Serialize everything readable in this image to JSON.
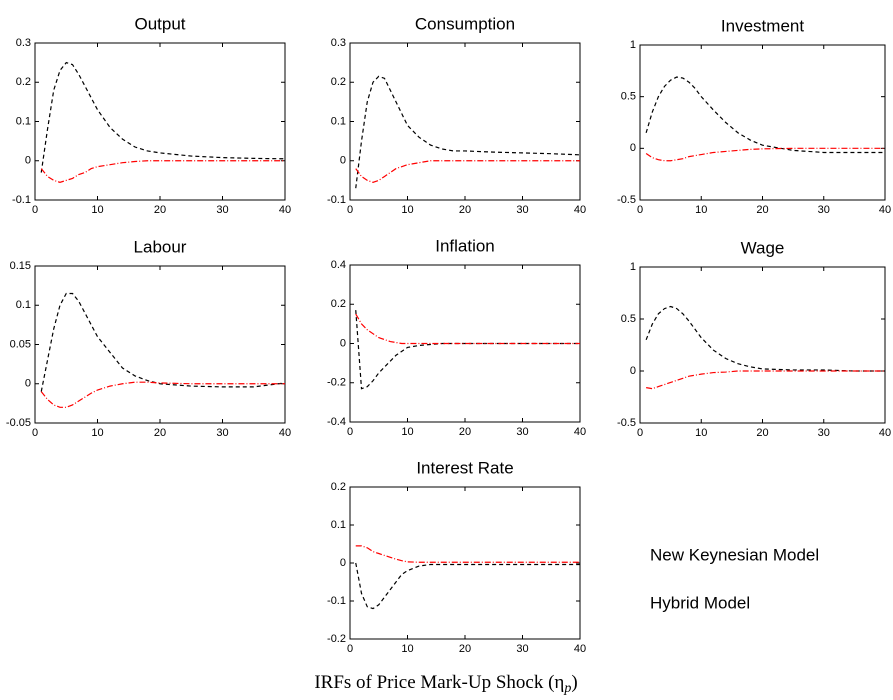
{
  "chart_data": [
    {
      "type": "line",
      "title": "Output",
      "x": [
        1,
        2,
        3,
        4,
        5,
        6,
        7,
        8,
        9,
        10,
        12,
        14,
        16,
        18,
        20,
        25,
        30,
        35,
        40
      ],
      "series": [
        {
          "color": "#000000",
          "style": "dashed",
          "values": [
            -0.03,
            0.08,
            0.18,
            0.23,
            0.25,
            0.245,
            0.22,
            0.19,
            0.16,
            0.13,
            0.085,
            0.055,
            0.035,
            0.025,
            0.02,
            0.012,
            0.008,
            0.006,
            0.005
          ]
        },
        {
          "color": "#ff0000",
          "style": "dashdot",
          "values": [
            -0.02,
            -0.04,
            -0.05,
            -0.055,
            -0.05,
            -0.045,
            -0.035,
            -0.03,
            -0.02,
            -0.015,
            -0.01,
            -0.005,
            -0.002,
            0,
            0,
            0,
            0,
            0,
            0
          ]
        }
      ],
      "xlim": [
        0,
        40
      ],
      "xticks": [
        0,
        10,
        20,
        30,
        40
      ],
      "ylim": [
        -0.1,
        0.3
      ],
      "yticks": [
        -0.1,
        0,
        0.1,
        0.2,
        0.3
      ]
    },
    {
      "type": "line",
      "title": "Consumption",
      "x": [
        1,
        2,
        3,
        4,
        5,
        6,
        7,
        8,
        9,
        10,
        12,
        14,
        16,
        18,
        20,
        25,
        30,
        35,
        40
      ],
      "series": [
        {
          "color": "#000000",
          "style": "dashed",
          "values": [
            -0.07,
            0.05,
            0.15,
            0.2,
            0.215,
            0.21,
            0.18,
            0.15,
            0.12,
            0.09,
            0.06,
            0.04,
            0.03,
            0.025,
            0.025,
            0.022,
            0.02,
            0.018,
            0.015
          ]
        },
        {
          "color": "#ff0000",
          "style": "dashdot",
          "values": [
            -0.02,
            -0.04,
            -0.05,
            -0.055,
            -0.05,
            -0.04,
            -0.03,
            -0.02,
            -0.015,
            -0.01,
            -0.005,
            0,
            0,
            0,
            0,
            0,
            0,
            0,
            0
          ]
        }
      ],
      "xlim": [
        0,
        40
      ],
      "xticks": [
        0,
        10,
        20,
        30,
        40
      ],
      "ylim": [
        -0.1,
        0.3
      ],
      "yticks": [
        -0.1,
        0,
        0.1,
        0.2,
        0.3
      ]
    },
    {
      "type": "line",
      "title": "Investment",
      "x": [
        1,
        2,
        3,
        4,
        5,
        6,
        7,
        8,
        9,
        10,
        12,
        14,
        16,
        18,
        20,
        25,
        30,
        35,
        40
      ],
      "series": [
        {
          "color": "#000000",
          "style": "dashed",
          "values": [
            0.15,
            0.35,
            0.5,
            0.6,
            0.66,
            0.69,
            0.68,
            0.64,
            0.58,
            0.5,
            0.37,
            0.25,
            0.15,
            0.08,
            0.03,
            -0.02,
            -0.04,
            -0.04,
            -0.04
          ]
        },
        {
          "color": "#ff0000",
          "style": "dashdot",
          "values": [
            -0.05,
            -0.09,
            -0.11,
            -0.12,
            -0.12,
            -0.11,
            -0.1,
            -0.08,
            -0.07,
            -0.06,
            -0.04,
            -0.03,
            -0.02,
            -0.01,
            -0.005,
            0,
            0,
            0,
            0
          ]
        }
      ],
      "xlim": [
        0,
        40
      ],
      "xticks": [
        0,
        10,
        20,
        30,
        40
      ],
      "ylim": [
        -0.5,
        1
      ],
      "yticks": [
        -0.5,
        0,
        0.5,
        1
      ]
    },
    {
      "type": "line",
      "title": "Labour",
      "x": [
        1,
        2,
        3,
        4,
        5,
        6,
        7,
        8,
        9,
        10,
        12,
        14,
        16,
        18,
        20,
        25,
        30,
        35,
        40
      ],
      "series": [
        {
          "color": "#000000",
          "style": "dashed",
          "values": [
            -0.01,
            0.03,
            0.07,
            0.1,
            0.115,
            0.115,
            0.105,
            0.09,
            0.075,
            0.06,
            0.04,
            0.02,
            0.01,
            0.004,
            0,
            -0.003,
            -0.004,
            -0.004,
            0.001
          ]
        },
        {
          "color": "#ff0000",
          "style": "dashdot",
          "values": [
            -0.01,
            -0.02,
            -0.027,
            -0.03,
            -0.03,
            -0.027,
            -0.022,
            -0.017,
            -0.012,
            -0.008,
            -0.003,
            0,
            0.002,
            0.002,
            0.001,
            0,
            0,
            0,
            0
          ]
        }
      ],
      "xlim": [
        0,
        40
      ],
      "xticks": [
        0,
        10,
        20,
        30,
        40
      ],
      "ylim": [
        -0.05,
        0.15
      ],
      "yticks": [
        -0.05,
        0,
        0.05,
        0.1,
        0.15
      ]
    },
    {
      "type": "line",
      "title": "Inflation",
      "x": [
        1,
        2,
        3,
        4,
        5,
        6,
        7,
        8,
        9,
        10,
        12,
        14,
        16,
        18,
        20,
        25,
        30,
        35,
        40
      ],
      "series": [
        {
          "color": "#000000",
          "style": "dashed",
          "values": [
            0.17,
            -0.23,
            -0.22,
            -0.19,
            -0.15,
            -0.12,
            -0.09,
            -0.06,
            -0.04,
            -0.02,
            -0.01,
            -0.005,
            0,
            0,
            0,
            0,
            0,
            0,
            0
          ]
        },
        {
          "color": "#ff0000",
          "style": "dashdot",
          "values": [
            0.15,
            0.1,
            0.07,
            0.05,
            0.03,
            0.02,
            0.01,
            0.005,
            0,
            0,
            0,
            0,
            0,
            0,
            0,
            0,
            0,
            0,
            0
          ]
        }
      ],
      "xlim": [
        0,
        40
      ],
      "xticks": [
        0,
        10,
        20,
        30,
        40
      ],
      "ylim": [
        -0.4,
        0.4
      ],
      "yticks": [
        -0.4,
        -0.2,
        0,
        0.2,
        0.4
      ]
    },
    {
      "type": "line",
      "title": "Wage",
      "x": [
        1,
        2,
        3,
        4,
        5,
        6,
        7,
        8,
        9,
        10,
        12,
        14,
        16,
        18,
        20,
        25,
        30,
        35,
        40
      ],
      "series": [
        {
          "color": "#000000",
          "style": "dashed",
          "values": [
            0.3,
            0.45,
            0.55,
            0.6,
            0.62,
            0.6,
            0.55,
            0.48,
            0.4,
            0.32,
            0.2,
            0.12,
            0.07,
            0.04,
            0.02,
            0.01,
            0.01,
            0,
            0
          ]
        },
        {
          "color": "#ff0000",
          "style": "dashdot",
          "values": [
            -0.16,
            -0.17,
            -0.15,
            -0.13,
            -0.11,
            -0.09,
            -0.07,
            -0.05,
            -0.04,
            -0.03,
            -0.015,
            -0.01,
            0,
            0,
            0,
            0,
            0,
            0,
            0
          ]
        }
      ],
      "xlim": [
        0,
        40
      ],
      "xticks": [
        0,
        10,
        20,
        30,
        40
      ],
      "ylim": [
        -0.5,
        1
      ],
      "yticks": [
        -0.5,
        0,
        0.5,
        1
      ]
    },
    {
      "type": "line",
      "title": "Interest Rate",
      "x": [
        1,
        2,
        3,
        4,
        5,
        6,
        7,
        8,
        9,
        10,
        12,
        14,
        16,
        18,
        20,
        25,
        30,
        35,
        40
      ],
      "series": [
        {
          "color": "#000000",
          "style": "dashed",
          "values": [
            0,
            -0.08,
            -0.115,
            -0.12,
            -0.11,
            -0.09,
            -0.07,
            -0.05,
            -0.03,
            -0.02,
            -0.008,
            -0.004,
            -0.004,
            -0.004,
            -0.004,
            -0.004,
            -0.004,
            -0.004,
            -0.004
          ]
        },
        {
          "color": "#ff0000",
          "style": "dashdot",
          "values": [
            0.045,
            0.045,
            0.04,
            0.03,
            0.025,
            0.02,
            0.015,
            0.01,
            0.006,
            0.003,
            0.002,
            0.002,
            0.002,
            0.002,
            0.002,
            0.002,
            0.002,
            0.002,
            0.002
          ]
        }
      ],
      "xlim": [
        0,
        40
      ],
      "xticks": [
        0,
        10,
        20,
        30,
        40
      ],
      "ylim": [
        -0.2,
        0.2
      ],
      "yticks": [
        -0.2,
        -0.1,
        0,
        0.1,
        0.2
      ]
    }
  ],
  "legend": [
    "New Keynesian Model",
    "Hybrid Model"
  ],
  "caption": {
    "text": "IRFs of Price Mark-Up Shock (η",
    "subscript": "p",
    "close": ")"
  }
}
